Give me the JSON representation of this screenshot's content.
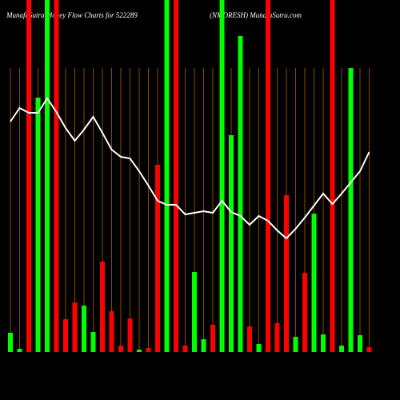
{
  "chart_data": {
    "type": "bar",
    "title": "MunafaSutra  Money Flow  Charts for 522289",
    "subtitle": "(NMDRESH) MunafaSutra.com",
    "categories": [
      null,
      null,
      null,
      null,
      null,
      null,
      null,
      null,
      null,
      null,
      null,
      null,
      null,
      null,
      null,
      null,
      null,
      null,
      null,
      null,
      null,
      null,
      null,
      null,
      null,
      null,
      null,
      null,
      null,
      null,
      null,
      null,
      null,
      null,
      null,
      null,
      null,
      null,
      null,
      null
    ],
    "values": [
      24,
      4,
      440,
      318,
      440,
      440,
      41,
      62,
      58,
      25,
      113,
      51,
      8,
      42,
      3,
      5,
      234,
      440,
      440,
      8,
      100,
      16,
      34,
      440,
      271,
      395,
      32,
      10,
      440,
      36,
      196,
      19,
      99,
      173,
      22,
      440,
      8,
      355,
      21,
      6
    ],
    "colors": [
      "#00ff00",
      "#00ff00",
      "#ff0000",
      "#00ff00",
      "#00ff00",
      "#ff0000",
      "#ff0000",
      "#ff0000",
      "#00ff00",
      "#00ff00",
      "#ff0000",
      "#ff0000",
      "#ff0000",
      "#ff0000",
      "#00ff00",
      "#ff0000",
      "#ff0000",
      "#00ff00",
      "#ff0000",
      "#ff0000",
      "#00ff00",
      "#00ff00",
      "#ff0000",
      "#00ff00",
      "#00ff00",
      "#00ff00",
      "#ff0000",
      "#00ff00",
      "#ff0000",
      "#ff0000",
      "#ff0000",
      "#00ff00",
      "#ff0000",
      "#00ff00",
      "#00ff00",
      "#ff0000",
      "#00ff00",
      "#00ff00",
      "#00ff00",
      "#ff0000"
    ],
    "line": {
      "color": "#ffffff",
      "values": [
        288,
        305,
        299,
        299,
        317,
        300,
        280,
        264,
        278,
        294,
        274,
        253,
        244,
        242,
        226,
        208,
        189,
        184,
        184,
        172,
        174,
        176,
        174,
        189,
        175,
        170,
        159,
        170,
        164,
        152,
        142,
        154,
        168,
        183,
        198,
        185,
        198,
        212,
        226,
        250
      ]
    },
    "ylim": [
      0,
      440
    ],
    "grid": true,
    "grid_color": "#8b4a00"
  }
}
